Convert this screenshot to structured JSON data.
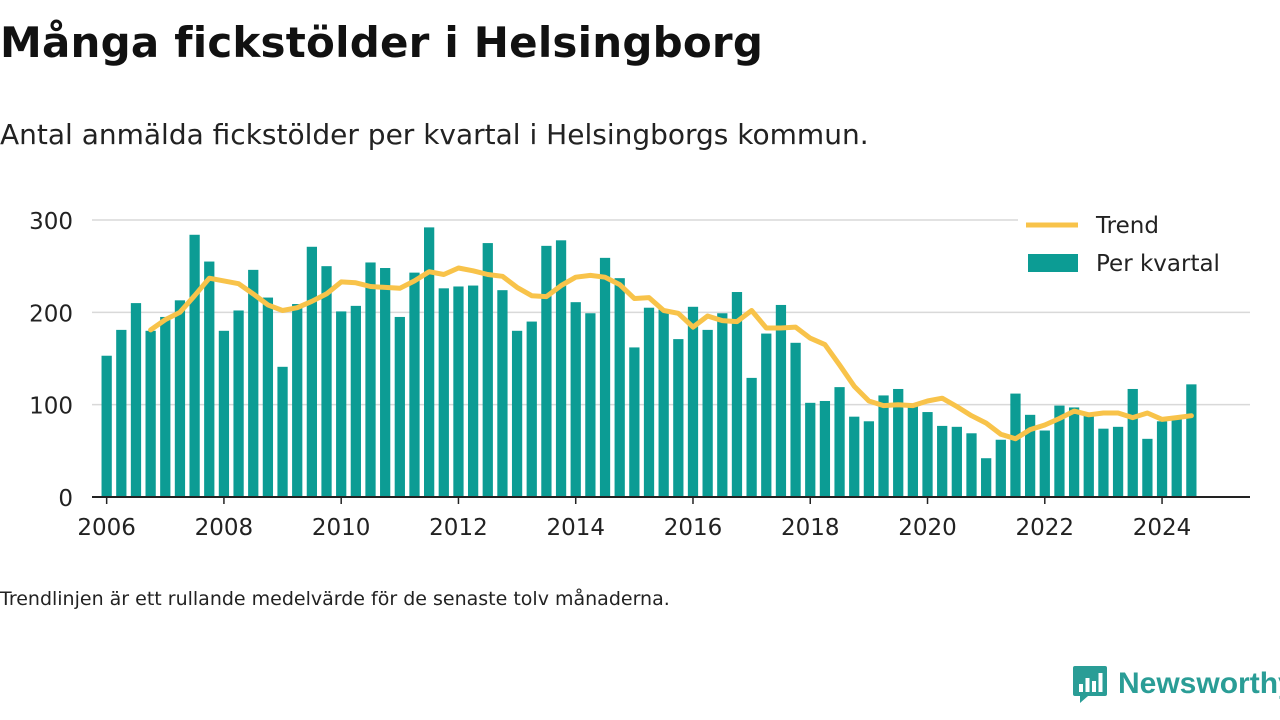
{
  "header": {
    "title": "Många fickstölder i Helsingborg",
    "subtitle": "Antal anmälda fickstölder per kvartal i Helsingborgs kommun."
  },
  "footnote": "Trendlinjen är ett rullande medelvärde för de senaste tolv månaderna.",
  "brand": {
    "name": "Newsworthy"
  },
  "colors": {
    "bars": "#0c9c94",
    "trend": "#f8c34a",
    "axis": "#222222",
    "grid": "#d9d9d9"
  },
  "chart_data": {
    "type": "bar",
    "title": "Många fickstölder i Helsingborg",
    "subtitle": "Antal anmälda fickstölder per kvartal i Helsingborgs kommun.",
    "xlabel": "",
    "ylabel": "",
    "ylim": [
      0,
      300
    ],
    "yticks": [
      "0",
      "100",
      "200",
      "300"
    ],
    "xticks": [
      "2006",
      "2008",
      "2010",
      "2012",
      "2014",
      "2016",
      "2018",
      "2020",
      "2022",
      "2024"
    ],
    "xlim": [
      2005.75,
      2025.5
    ],
    "grid": true,
    "legend": {
      "placement": "top-right",
      "entries": [
        "Trend",
        "Per kvartal"
      ]
    },
    "series": [
      {
        "name": "Per kvartal",
        "type": "bar",
        "x": [
          "2006 Q1",
          "2006 Q2",
          "2006 Q3",
          "2006 Q4",
          "2007 Q1",
          "2007 Q2",
          "2007 Q3",
          "2007 Q4",
          "2008 Q1",
          "2008 Q2",
          "2008 Q3",
          "2008 Q4",
          "2009 Q1",
          "2009 Q2",
          "2009 Q3",
          "2009 Q4",
          "2010 Q1",
          "2010 Q2",
          "2010 Q3",
          "2010 Q4",
          "2011 Q1",
          "2011 Q2",
          "2011 Q3",
          "2011 Q4",
          "2012 Q1",
          "2012 Q2",
          "2012 Q3",
          "2012 Q4",
          "2013 Q1",
          "2013 Q2",
          "2013 Q3",
          "2013 Q4",
          "2014 Q1",
          "2014 Q2",
          "2014 Q3",
          "2014 Q4",
          "2015 Q1",
          "2015 Q2",
          "2015 Q3",
          "2015 Q4",
          "2016 Q1",
          "2016 Q2",
          "2016 Q3",
          "2016 Q4",
          "2017 Q1",
          "2017 Q2",
          "2017 Q3",
          "2017 Q4",
          "2018 Q1",
          "2018 Q2",
          "2018 Q3",
          "2018 Q4",
          "2019 Q1",
          "2019 Q2",
          "2019 Q3",
          "2019 Q4",
          "2020 Q1",
          "2020 Q2",
          "2020 Q3",
          "2020 Q4",
          "2021 Q1",
          "2021 Q2",
          "2021 Q3",
          "2021 Q4",
          "2022 Q1",
          "2022 Q2",
          "2022 Q3",
          "2022 Q4",
          "2023 Q1",
          "2023 Q2",
          "2023 Q3",
          "2023 Q4",
          "2024 Q1",
          "2024 Q2",
          "2024 Q3"
        ],
        "values": [
          153,
          181,
          210,
          180,
          195,
          213,
          284,
          255,
          180,
          202,
          246,
          216,
          141,
          209,
          271,
          250,
          201,
          207,
          254,
          248,
          195,
          243,
          292,
          226,
          228,
          229,
          275,
          224,
          180,
          190,
          272,
          278,
          211,
          199,
          259,
          237,
          162,
          205,
          203,
          171,
          206,
          181,
          199,
          222,
          129,
          177,
          208,
          167,
          102,
          104,
          119,
          87,
          82,
          110,
          117,
          101,
          92,
          77,
          76,
          69,
          42,
          62,
          112,
          89,
          72,
          99,
          97,
          90,
          74,
          76,
          117,
          63,
          82,
          85,
          122
        ]
      },
      {
        "name": "Trend",
        "type": "line",
        "x": [
          2006.75,
          2007,
          2007.25,
          2007.5,
          2007.75,
          2008,
          2008.25,
          2008.5,
          2008.75,
          2009,
          2009.25,
          2009.5,
          2009.75,
          2010,
          2010.25,
          2010.5,
          2010.75,
          2011,
          2011.25,
          2011.5,
          2011.75,
          2012,
          2012.25,
          2012.5,
          2012.75,
          2013,
          2013.25,
          2013.5,
          2013.75,
          2014,
          2014.25,
          2014.5,
          2014.75,
          2015,
          2015.25,
          2015.5,
          2015.75,
          2016,
          2016.25,
          2016.5,
          2016.75,
          2017,
          2017.25,
          2017.5,
          2017.75,
          2018,
          2018.25,
          2018.5,
          2018.75,
          2019,
          2019.25,
          2019.5,
          2019.75,
          2020,
          2020.25,
          2020.5,
          2020.75,
          2021,
          2021.25,
          2021.5,
          2021.75,
          2022,
          2022.25,
          2022.5,
          2022.75,
          2023,
          2023.25,
          2023.5,
          2023.75,
          2024,
          2024.25,
          2024.5
        ],
        "values": [
          181,
          192,
          200,
          218,
          237,
          234,
          231,
          220,
          208,
          202,
          205,
          212,
          220,
          233,
          232,
          228,
          227,
          226,
          234,
          244,
          241,
          248,
          245,
          241,
          239,
          227,
          218,
          217,
          229,
          238,
          240,
          238,
          230,
          215,
          216,
          202,
          199,
          184,
          196,
          191,
          190,
          202,
          183,
          183,
          184,
          172,
          165,
          143,
          120,
          104,
          99,
          100,
          99,
          104,
          107,
          98,
          88,
          80,
          68,
          63,
          73,
          78,
          85,
          93,
          89,
          91,
          91,
          86,
          91,
          84,
          86,
          88
        ]
      }
    ]
  }
}
